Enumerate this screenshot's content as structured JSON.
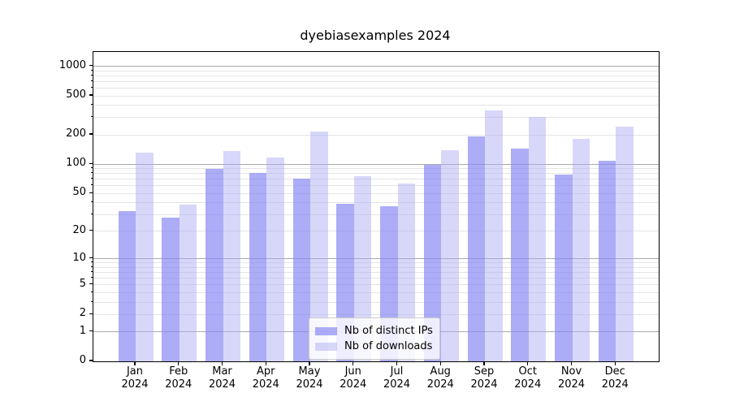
{
  "title": "dyebiasexamples 2024",
  "chart_data": {
    "type": "bar",
    "title": "dyebiasexamples 2024",
    "categories": [
      "Jan 2024",
      "Feb 2024",
      "Mar 2024",
      "Apr 2024",
      "May 2024",
      "Jun 2024",
      "Jul 2024",
      "Aug 2024",
      "Sep 2024",
      "Oct 2024",
      "Nov 2024",
      "Dec 2024"
    ],
    "x_tick_month_line": [
      "Jan",
      "Feb",
      "Mar",
      "Apr",
      "May",
      "Jun",
      "Jul",
      "Aug",
      "Sep",
      "Oct",
      "Nov",
      "Dec"
    ],
    "x_tick_year_line": "2024",
    "series": [
      {
        "name": "Nb of distinct IPs",
        "color": "rgba(132,132,243,0.68)",
        "values": [
          33,
          28,
          89,
          81,
          71,
          39,
          37,
          98,
          194,
          146,
          78,
          108
        ]
      },
      {
        "name": "Nb of downloads",
        "color": "rgba(169,169,243,0.47)",
        "values": [
          131,
          38,
          137,
          117,
          215,
          76,
          63,
          139,
          357,
          303,
          182,
          244
        ]
      }
    ],
    "yscale": "log1p",
    "ylim": [
      0,
      1400
    ],
    "y_axis_ticks": [
      0,
      1,
      2,
      5,
      10,
      20,
      50,
      100,
      200,
      500,
      1000
    ],
    "y_major_gridlines": [
      1,
      10,
      100,
      1000
    ],
    "y_minor_gridlines": [
      2,
      3,
      4,
      5,
      6,
      7,
      8,
      9,
      20,
      30,
      40,
      50,
      60,
      70,
      80,
      90,
      200,
      300,
      400,
      500,
      600,
      700,
      800,
      900
    ],
    "grid": true,
    "legend_position": "lower center",
    "axis_color": "#000000",
    "major_grid_color": "#ababab",
    "minor_grid_color": "#e4e4e8"
  }
}
